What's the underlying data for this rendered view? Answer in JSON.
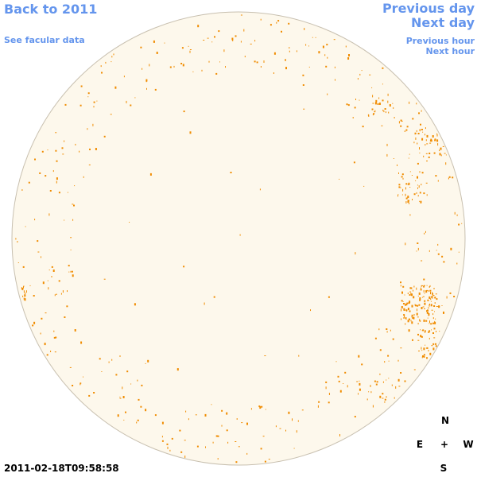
{
  "nav": {
    "back_label": "Back to 2011",
    "facular_label": "See facular data",
    "previous_day_label": "Previous day",
    "next_day_label": "Next day",
    "previous_hour_label": "Previous hour",
    "next_hour_label": "Next hour"
  },
  "timestamp": "2011-02-18T09:58:58",
  "compass": {
    "north": "N",
    "east": "E",
    "center": "+",
    "west": "W",
    "south": "S"
  },
  "colors": {
    "disk_fill": "#fdf8ec",
    "disk_outline": "#c8c0b0",
    "facula": "#f08c00",
    "link": "#6495ed"
  }
}
